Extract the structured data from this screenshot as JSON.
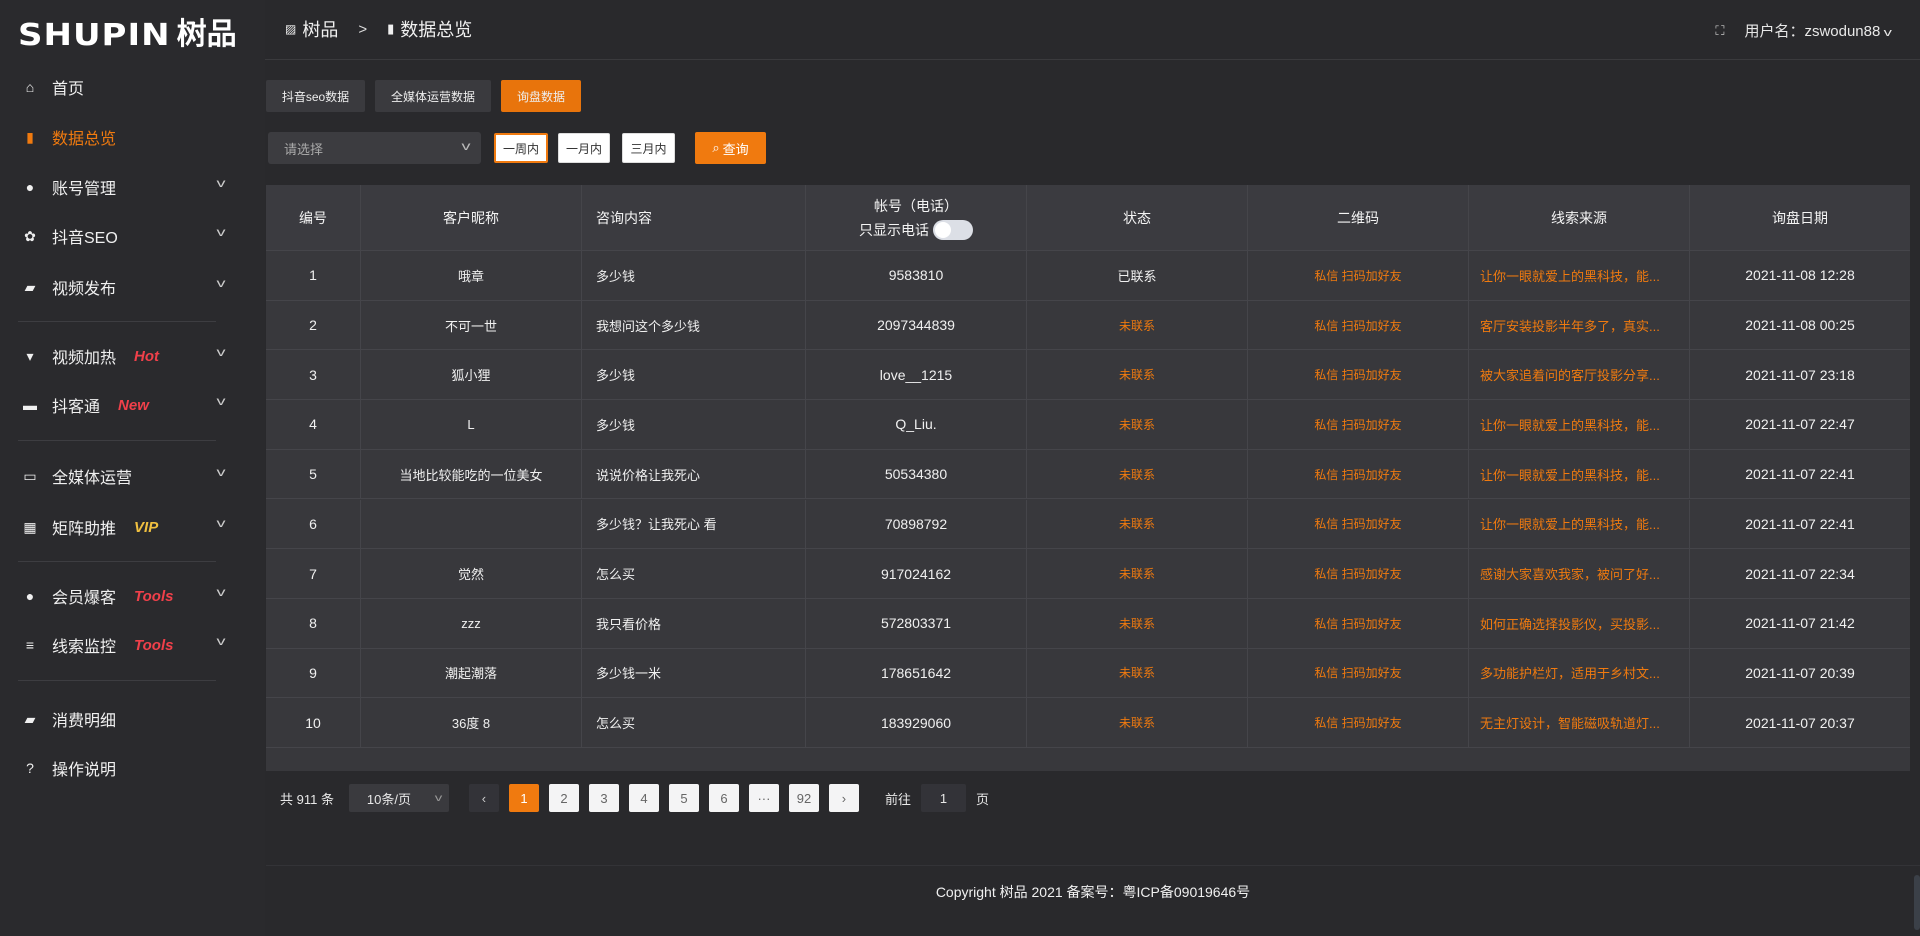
{
  "logo": {
    "en": "SHUPIN",
    "cn": "树品"
  },
  "sidebar": {
    "items": [
      {
        "label": "首页",
        "icon": "home-icon"
      },
      {
        "label": "数据总览",
        "icon": "bar-chart-icon",
        "active": true
      },
      {
        "label": "账号管理",
        "icon": "user-icon",
        "chevron": true
      },
      {
        "label": "抖音SEO",
        "icon": "gear-icon",
        "chevron": true
      },
      {
        "label": "视频发布",
        "icon": "video-camera-icon",
        "chevron": true
      },
      {
        "label": "视频加热",
        "icon": "billboard-icon",
        "chevron": true,
        "badge": "Hot",
        "badge_color": "#f0404a"
      },
      {
        "label": "抖客通",
        "icon": "chat-icon",
        "chevron": true,
        "badge": "New",
        "badge_color": "#f0404a"
      },
      {
        "label": "全媒体运营",
        "icon": "monitor-icon",
        "chevron": true
      },
      {
        "label": "矩阵助推",
        "icon": "grid-icon",
        "chevron": true,
        "badge": "VIP",
        "badge_color": "#f0c040"
      },
      {
        "label": "会员爆客",
        "icon": "user-icon",
        "chevron": true,
        "badge": "Tools",
        "badge_color": "#f0404a"
      },
      {
        "label": "线索监控",
        "icon": "sliders-icon",
        "chevron": true,
        "badge": "Tools",
        "badge_color": "#f0404a"
      },
      {
        "label": "消费明细",
        "icon": "wallet-icon"
      },
      {
        "label": "操作说明",
        "icon": "help-icon"
      }
    ]
  },
  "header": {
    "breadcrumb": [
      "树品",
      "数据总览"
    ],
    "user_label": "用户名：zswodun88"
  },
  "tabs": [
    "抖音seo数据",
    "全媒体运营数据",
    "询盘数据"
  ],
  "filters": {
    "select_placeholder": "请选择",
    "ranges": [
      "一周内",
      "一月内",
      "三月内"
    ],
    "active_range": "一周内",
    "query": "查询"
  },
  "table": {
    "columns": [
      "编号",
      "客户昵称",
      "咨询内容",
      "帐号（电话）",
      "状态",
      "二维码",
      "线索来源",
      "询盘日期"
    ],
    "phone_toggle_label": "只显示电话",
    "qr_text": "私信 扫码加好友",
    "rows": [
      {
        "id": "1",
        "name": "哦章",
        "content": "多少钱",
        "account": "9583810",
        "status": "已联系",
        "source": "让你一眼就爱上的黑科技，能...",
        "date": "2021-11-08 12:28"
      },
      {
        "id": "2",
        "name": "不可一世",
        "content": "我想问这个多少钱",
        "account": "2097344839",
        "status": "未联系",
        "source": "客厅安装投影半年多了，真实...",
        "date": "2021-11-08 00:25"
      },
      {
        "id": "3",
        "name": "狐小狸",
        "content": "多少钱",
        "account": "love__1215",
        "status": "未联系",
        "source": "被大家追着问的客厅投影分享...",
        "date": "2021-11-07 23:18"
      },
      {
        "id": "4",
        "name": "L",
        "content": "多少钱",
        "account": "Q_Liu.",
        "status": "未联系",
        "source": "让你一眼就爱上的黑科技，能...",
        "date": "2021-11-07 22:47"
      },
      {
        "id": "5",
        "name": "当地比较能吃的一位美女",
        "content": "说说价格让我死心",
        "account": "50534380",
        "status": "未联系",
        "source": "让你一眼就爱上的黑科技，能...",
        "date": "2021-11-07 22:41"
      },
      {
        "id": "6",
        "name": "",
        "content": "多少钱？让我死心 看",
        "account": "70898792",
        "status": "未联系",
        "source": "让你一眼就爱上的黑科技，能...",
        "date": "2021-11-07 22:41"
      },
      {
        "id": "7",
        "name": "觉然",
        "content": "怎么买",
        "account": "917024162",
        "status": "未联系",
        "source": "感谢大家喜欢我家，被问了好...",
        "date": "2021-11-07 22:34"
      },
      {
        "id": "8",
        "name": "zzz",
        "content": "我只看价格",
        "account": "572803371",
        "status": "未联系",
        "source": "如何正确选择投影仪，买投影...",
        "date": "2021-11-07 21:42"
      },
      {
        "id": "9",
        "name": "潮起潮落",
        "content": "多少钱一米",
        "account": "178651642",
        "status": "未联系",
        "source": "多功能护栏灯，适用于乡村文...",
        "date": "2021-11-07 20:39"
      },
      {
        "id": "10",
        "name": "36度 8",
        "content": "怎么买",
        "account": "183929060",
        "status": "未联系",
        "source": "无主灯设计，智能磁吸轨道灯...",
        "date": "2021-11-07 20:37"
      }
    ]
  },
  "pagination": {
    "total_text": "共 911 条",
    "page_size": "10条/页",
    "pages": [
      "1",
      "2",
      "3",
      "4",
      "5",
      "6",
      "···",
      "92"
    ],
    "current": "1",
    "goto_label": "前往",
    "goto_value": "1",
    "page_suffix": "页"
  },
  "footer": {
    "copyright": "Copyright 树品 2021 备案号：粤ICP备09019646号"
  },
  "colors": {
    "accent": "#f07a0f",
    "background": "#29292c",
    "table_bg": "#38383c"
  }
}
